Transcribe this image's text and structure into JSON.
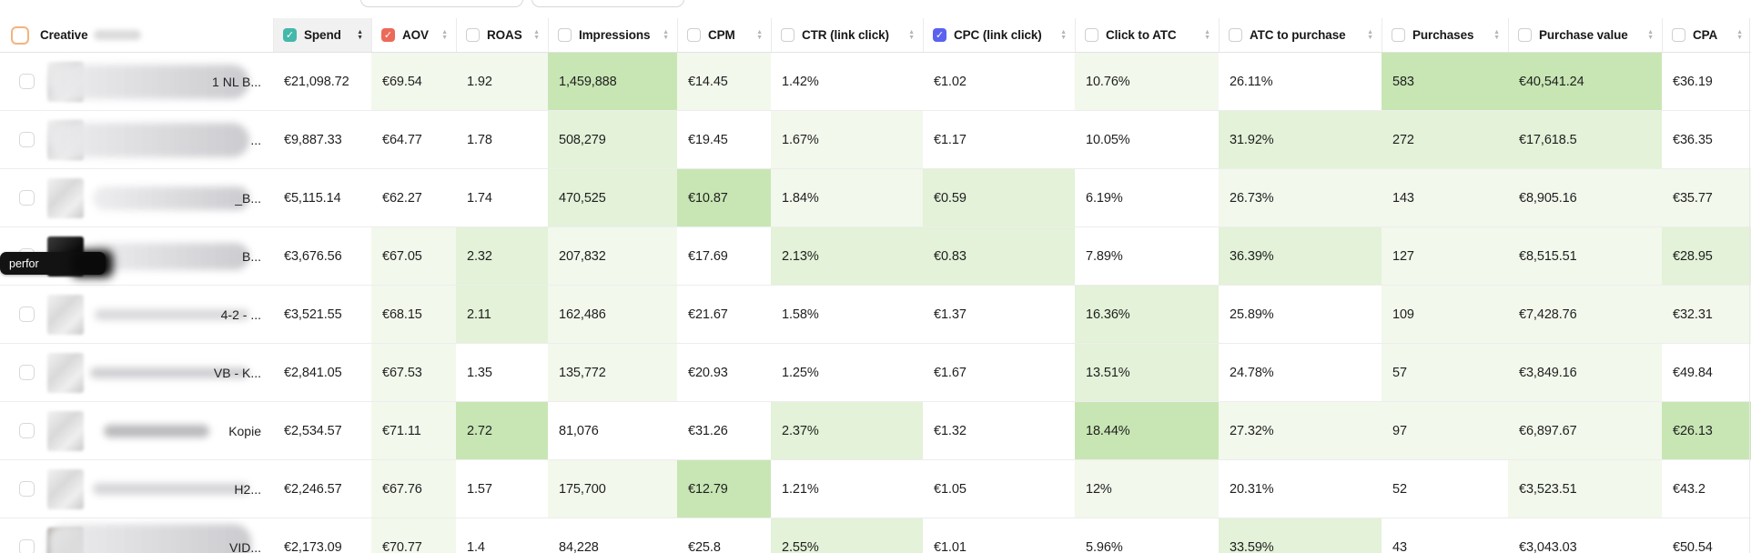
{
  "tooltip": {
    "label": "perfor"
  },
  "table": {
    "creative_label": "Creative",
    "highlight_colors": {
      "0": "transparent",
      "1": "#f2f8ec",
      "2": "#e3f2d8",
      "3": "#c8e6b4"
    },
    "accent_colors": {
      "select_all_border": "#f3b47e",
      "spend_checkbox": "#44b8ab",
      "aov_checkbox": "#eb6a59",
      "cpc_checkbox": "#5a62ef",
      "sorted_header_bg": "#f1f1f1"
    },
    "columns": [
      {
        "id": "spend",
        "label": "Spend",
        "checkbox": "checked",
        "accent": "#44b8ab",
        "sorted": true
      },
      {
        "id": "aov",
        "label": "AOV",
        "checkbox": "checked",
        "accent": "#eb6a59",
        "sorted": false
      },
      {
        "id": "roas",
        "label": "ROAS",
        "checkbox": "unchecked",
        "sorted": false
      },
      {
        "id": "impressions",
        "label": "Impressions",
        "checkbox": "unchecked",
        "sorted": false
      },
      {
        "id": "cpm",
        "label": "CPM",
        "checkbox": "unchecked",
        "sorted": false
      },
      {
        "id": "ctr",
        "label": "CTR (link click)",
        "checkbox": "unchecked",
        "sorted": false
      },
      {
        "id": "cpc",
        "label": "CPC (link click)",
        "checkbox": "checked",
        "accent": "#5a62ef",
        "sorted": false
      },
      {
        "id": "click_to_atc",
        "label": "Click to ATC",
        "checkbox": "unchecked",
        "sorted": false
      },
      {
        "id": "atc_to_purchase",
        "label": "ATC to purchase",
        "checkbox": "unchecked",
        "sorted": false
      },
      {
        "id": "purchases",
        "label": "Purchases",
        "checkbox": "unchecked",
        "sorted": false
      },
      {
        "id": "purchase_value",
        "label": "Purchase value",
        "checkbox": "unchecked",
        "sorted": false
      },
      {
        "id": "cpa",
        "label": "CPA",
        "checkbox": "unchecked",
        "sorted": false
      }
    ],
    "rows": [
      {
        "name_suffix": "1 NL B...",
        "values": [
          "€21,098.72",
          "€69.54",
          "1.92",
          "1,459,888",
          "€14.45",
          "1.42%",
          "€1.02",
          "10.76%",
          "26.11%",
          "583",
          "€40,541.24",
          "€36.19"
        ],
        "highlights": [
          0,
          1,
          1,
          3,
          1,
          0,
          0,
          1,
          0,
          3,
          3,
          0
        ]
      },
      {
        "name_suffix": "...",
        "values": [
          "€9,887.33",
          "€64.77",
          "1.78",
          "508,279",
          "€19.45",
          "1.67%",
          "€1.17",
          "10.05%",
          "31.92%",
          "272",
          "€17,618.5",
          "€36.35"
        ],
        "highlights": [
          0,
          0,
          0,
          2,
          0,
          1,
          0,
          0,
          2,
          2,
          2,
          0
        ]
      },
      {
        "name_suffix": "_B...",
        "values": [
          "€5,115.14",
          "€62.27",
          "1.74",
          "470,525",
          "€10.87",
          "1.84%",
          "€0.59",
          "6.19%",
          "26.73%",
          "143",
          "€8,905.16",
          "€35.77"
        ],
        "highlights": [
          0,
          0,
          0,
          2,
          3,
          1,
          2,
          0,
          1,
          1,
          1,
          1
        ]
      },
      {
        "name_suffix": "B...",
        "values": [
          "€3,676.56",
          "€67.05",
          "2.32",
          "207,832",
          "€17.69",
          "2.13%",
          "€0.83",
          "7.89%",
          "36.39%",
          "127",
          "€8,515.51",
          "€28.95"
        ],
        "highlights": [
          0,
          1,
          2,
          1,
          0,
          2,
          2,
          0,
          2,
          1,
          1,
          2
        ]
      },
      {
        "name_suffix": "4-2 - ...",
        "values": [
          "€3,521.55",
          "€68.15",
          "2.11",
          "162,486",
          "€21.67",
          "1.58%",
          "€1.37",
          "16.36%",
          "25.89%",
          "109",
          "€7,428.76",
          "€32.31"
        ],
        "highlights": [
          0,
          1,
          2,
          1,
          0,
          0,
          0,
          2,
          0,
          1,
          1,
          1
        ]
      },
      {
        "name_suffix": "VB - K...",
        "values": [
          "€2,841.05",
          "€67.53",
          "1.35",
          "135,772",
          "€20.93",
          "1.25%",
          "€1.67",
          "13.51%",
          "24.78%",
          "57",
          "€3,849.16",
          "€49.84"
        ],
        "highlights": [
          0,
          1,
          0,
          1,
          0,
          0,
          0,
          2,
          0,
          1,
          1,
          0
        ]
      },
      {
        "name_suffix": "Kopie",
        "values": [
          "€2,534.57",
          "€71.11",
          "2.72",
          "81,076",
          "€31.26",
          "2.37%",
          "€1.32",
          "18.44%",
          "27.32%",
          "97",
          "€6,897.67",
          "€26.13"
        ],
        "highlights": [
          0,
          1,
          3,
          0,
          0,
          2,
          0,
          3,
          1,
          1,
          1,
          3
        ]
      },
      {
        "name_suffix": "H2...",
        "values": [
          "€2,246.57",
          "€67.76",
          "1.57",
          "175,700",
          "€12.79",
          "1.21%",
          "€1.05",
          "12%",
          "20.31%",
          "52",
          "€3,523.51",
          "€43.2"
        ],
        "highlights": [
          0,
          1,
          0,
          1,
          3,
          0,
          0,
          1,
          0,
          0,
          1,
          0
        ]
      },
      {
        "name_suffix": "VID...",
        "values": [
          "€2,173.09",
          "€70.77",
          "1.4",
          "84,228",
          "€25.8",
          "2.55%",
          "€1.01",
          "5.96%",
          "33.59%",
          "43",
          "€3,043.03",
          "€50.54"
        ],
        "highlights": [
          0,
          1,
          0,
          0,
          0,
          2,
          0,
          0,
          2,
          0,
          0,
          0
        ]
      }
    ]
  }
}
